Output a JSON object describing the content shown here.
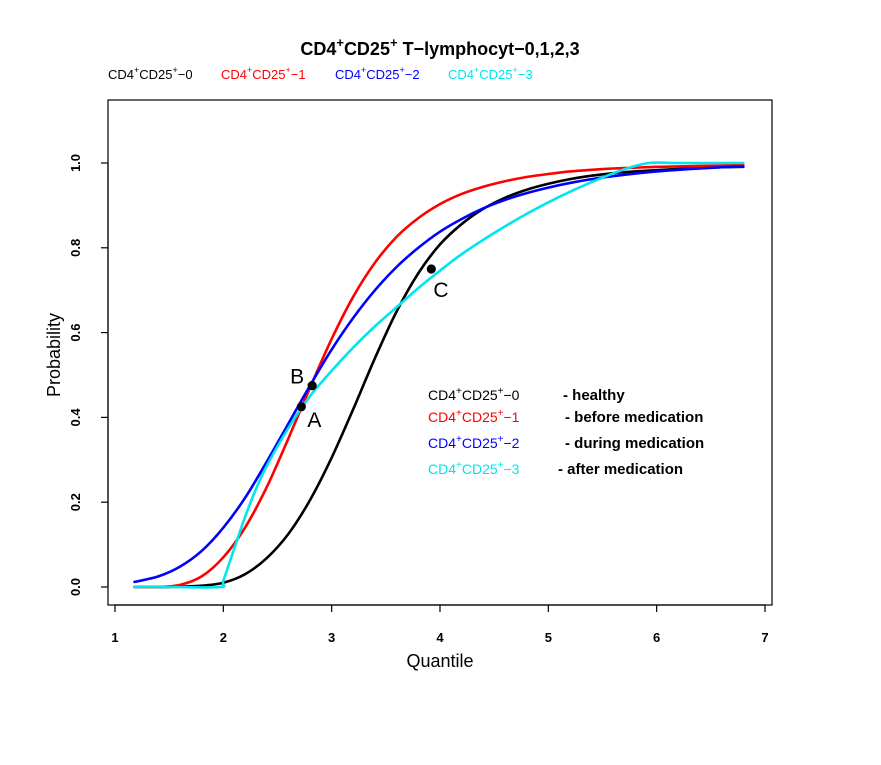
{
  "chart_data": {
    "type": "line",
    "title": {
      "prefix": "CD4",
      "sup1": "+",
      "mid": "CD25",
      "sup2": "+",
      "suffix": "  T−lymphocyt−0,1,2,3"
    },
    "xlabel": "Quantile",
    "ylabel": "Probability",
    "xlim": [
      1.0,
      7.0
    ],
    "ylim": [
      -0.06,
      1.15
    ],
    "xticks": [
      "1",
      "2",
      "3",
      "4",
      "5",
      "6",
      "7"
    ],
    "yticks": [
      "0.0",
      "0.2",
      "0.4",
      "0.6",
      "0.8",
      "1.0"
    ],
    "grid": false,
    "legend_top": [
      {
        "base": "CD4",
        "sup": "+",
        "mid": "CD25",
        "sup2": "+",
        "end": "−0",
        "color": "#000000"
      },
      {
        "base": "CD4",
        "sup": "+",
        "mid": "CD25",
        "sup2": "+",
        "end": "−1",
        "color": "#ff0000"
      },
      {
        "base": "CD4",
        "sup": "+",
        "mid": "CD25",
        "sup2": "+",
        "end": "−2",
        "color": "#0000ff"
      },
      {
        "base": "CD4",
        "sup": "+",
        "mid": "CD25",
        "sup2": "+",
        "end": "−3",
        "color": "#00e5ee"
      }
    ],
    "legend_inner": [
      {
        "base": "CD4",
        "sup": "+",
        "mid": "CD25",
        "sup2": "+",
        "end": "−0",
        "desc": "- healthy",
        "color": "#000000"
      },
      {
        "base": "CD4",
        "sup": "+",
        "mid": "CD25",
        "sup2": "+",
        "end": "−1",
        "desc": "- before medication",
        "color": "#ff0000"
      },
      {
        "base": "CD4",
        "sup": "+",
        "mid": "CD25",
        "sup2": "+",
        "end": "−2",
        "desc": "- during medication",
        "color": "#0000ff"
      },
      {
        "base": "CD4",
        "sup": "+",
        "mid": "CD25",
        "sup2": "+",
        "end": "−3",
        "desc": "- after medication",
        "color": "#00e5ee"
      }
    ],
    "series": [
      {
        "color": "#000000",
        "x": [
          1.18,
          1.5,
          1.8,
          2.0,
          2.2,
          2.4,
          2.6,
          2.8,
          3.0,
          3.2,
          3.4,
          3.6,
          3.8,
          4.0,
          4.2,
          4.4,
          4.6,
          4.8,
          5.0,
          5.2,
          5.4,
          5.6,
          5.8,
          6.0,
          6.2,
          6.4,
          6.6,
          6.8
        ],
        "y": [
          0.0,
          0.0,
          0.003,
          0.01,
          0.03,
          0.068,
          0.125,
          0.205,
          0.305,
          0.42,
          0.54,
          0.65,
          0.74,
          0.808,
          0.856,
          0.892,
          0.918,
          0.937,
          0.951,
          0.962,
          0.97,
          0.976,
          0.98,
          0.983,
          0.986,
          0.988,
          0.99,
          0.991
        ]
      },
      {
        "color": "#ff0000",
        "x": [
          1.18,
          1.4,
          1.6,
          1.8,
          2.0,
          2.2,
          2.4,
          2.6,
          2.8,
          3.0,
          3.2,
          3.4,
          3.6,
          3.8,
          4.0,
          4.2,
          4.4,
          4.6,
          4.8,
          5.0,
          5.2,
          5.4,
          5.6,
          5.8,
          6.0,
          6.2,
          6.4,
          6.6,
          6.8
        ],
        "y": [
          0.0,
          0.0,
          0.005,
          0.025,
          0.07,
          0.14,
          0.235,
          0.35,
          0.47,
          0.585,
          0.685,
          0.765,
          0.826,
          0.87,
          0.903,
          0.927,
          0.944,
          0.957,
          0.967,
          0.974,
          0.98,
          0.984,
          0.987,
          0.989,
          0.991,
          0.992,
          0.993,
          0.994,
          0.995
        ]
      },
      {
        "color": "#0000ff",
        "x": [
          1.18,
          1.4,
          1.6,
          1.8,
          2.0,
          2.2,
          2.4,
          2.6,
          2.8,
          3.0,
          3.2,
          3.4,
          3.6,
          3.8,
          4.0,
          4.2,
          4.4,
          4.6,
          4.8,
          5.0,
          5.2,
          5.4,
          5.6,
          5.8,
          6.0,
          6.2,
          6.4,
          6.6,
          6.8
        ],
        "y": [
          0.012,
          0.025,
          0.048,
          0.085,
          0.14,
          0.21,
          0.295,
          0.385,
          0.475,
          0.56,
          0.635,
          0.7,
          0.755,
          0.8,
          0.838,
          0.868,
          0.893,
          0.913,
          0.929,
          0.942,
          0.953,
          0.962,
          0.969,
          0.975,
          0.98,
          0.984,
          0.987,
          0.99,
          0.992
        ]
      },
      {
        "color": "#00e5ee",
        "x": [
          1.18,
          1.5,
          1.97,
          2.0,
          2.1,
          2.2,
          2.3,
          2.4,
          2.6,
          2.8,
          3.0,
          3.2,
          3.4,
          3.6,
          3.8,
          3.92,
          4.2,
          4.5,
          4.8,
          5.1,
          5.4,
          5.7,
          5.93,
          6.2,
          6.5,
          6.8
        ],
        "y": [
          0.0,
          0.0,
          0.0,
          0.015,
          0.09,
          0.165,
          0.23,
          0.285,
          0.375,
          0.45,
          0.51,
          0.565,
          0.615,
          0.66,
          0.705,
          0.73,
          0.785,
          0.835,
          0.88,
          0.92,
          0.955,
          0.985,
          1.0,
          1.0,
          1.0,
          1.0
        ]
      }
    ],
    "points": [
      {
        "label": "A",
        "x": 2.72,
        "y": 0.425
      },
      {
        "label": "B",
        "x": 2.82,
        "y": 0.475
      },
      {
        "label": "C",
        "x": 3.92,
        "y": 0.75
      }
    ]
  }
}
